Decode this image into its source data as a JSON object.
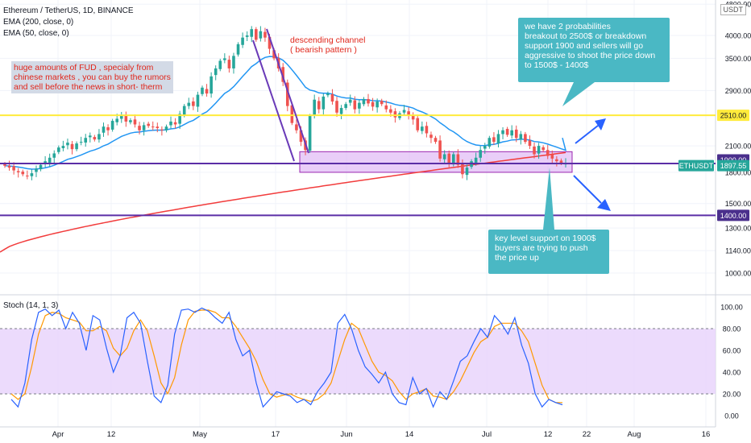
{
  "legend": {
    "symbol": "Ethereum / TetherUS, 1D, BINANCE",
    "ema200": "EMA (200, close, 0)",
    "ema50": "EMA (50, close, 0)",
    "stoch": "Stoch (14, 1, 3)"
  },
  "currency_button": "USDT",
  "annotations": {
    "fud": "huge amounts of FUD , specialy from\nchinese markets , you can buy the rumors\nand sell before the news in short- therm",
    "channel": "descending channel\n( bearish pattern )",
    "probabilities": "we have 2 probabilities\nbreakout to 2500$ or breakdown\nsupport 1900 and sellers will go\naggressive to shoot the price down\nto 1500$ - 1400$",
    "key_level": "key level support on 1900$\nbuyers are trying to push\nthe price up"
  },
  "price_labels": {
    "level_2510": "2510.00",
    "level_1900": "1900.00",
    "current_symbol": "ETHUSDT",
    "current_price": "1897.55",
    "level_1400": "1400.00"
  },
  "colors": {
    "up": "#26a69a",
    "down": "#ef5350",
    "ema50": "#2196f3",
    "ema200": "#f23c3c",
    "level_2510": "#ffeb3b",
    "level_1900": "#5b2ea6",
    "level_1400": "#5b2ea6",
    "zone": "#d7a6f2",
    "channel": "#6a3ab8",
    "arrow": "#2962ff",
    "stoch_k": "#2962ff",
    "stoch_d": "#ff9800",
    "stoch_band": "#e9d5fb"
  },
  "chart_data": {
    "type": "candlestick",
    "price_axis": {
      "ticks": [
        1000,
        1140,
        1300,
        1400,
        1500,
        1800,
        1900,
        2100,
        2510,
        2900,
        3500,
        4000,
        4800
      ],
      "tick_labels": [
        "1000.00",
        "1140.00",
        "1300.00",
        "1400.00",
        "1500.00",
        "1800.00",
        "1900.00",
        "2100.00",
        "2510.00",
        "2900.00",
        "3500.00",
        "4000.00",
        "4800.00"
      ],
      "scale": "log"
    },
    "time_axis": {
      "labels": [
        "Apr",
        "12",
        "May",
        "17",
        "Jun",
        "14",
        "Jul",
        "12",
        "22",
        "Aug",
        "16"
      ]
    },
    "closes": [
      1870,
      1850,
      1820,
      1800,
      1780,
      1760,
      1790,
      1840,
      1880,
      1920,
      1960,
      2010,
      2080,
      2100,
      2140,
      2060,
      2130,
      2150,
      2200,
      2230,
      2180,
      2250,
      2350,
      2300,
      2430,
      2460,
      2500,
      2420,
      2440,
      2380,
      2300,
      2370,
      2360,
      2340,
      2330,
      2300,
      2350,
      2420,
      2380,
      2530,
      2650,
      2700,
      2650,
      2830,
      2950,
      2850,
      3150,
      3300,
      3450,
      3500,
      3300,
      3550,
      3800,
      3950,
      4000,
      4150,
      3900,
      4100,
      3950,
      3700,
      3500,
      3300,
      3050,
      2650,
      2400,
      2300,
      2150,
      2050,
      2500,
      2750,
      2600,
      2800,
      2850,
      2720,
      2550,
      2620,
      2680,
      2750,
      2600,
      2700,
      2760,
      2690,
      2640,
      2720,
      2680,
      2600,
      2550,
      2480,
      2540,
      2590,
      2510,
      2450,
      2300,
      2350,
      2260,
      2200,
      2150,
      1950,
      2000,
      1900,
      2000,
      1880,
      1780,
      1850,
      1920,
      1960,
      2050,
      2100,
      2200,
      2150,
      2250,
      2300,
      2240,
      2300,
      2200,
      2250,
      2150,
      2100,
      2000,
      2100,
      2050,
      1980,
      1950,
      1920,
      1900,
      1897.55
    ],
    "ema50_label": "EMA (50, close, 0)",
    "ema200_label": "EMA (200, close, 0)",
    "stoch_axis": {
      "ticks": [
        0,
        20,
        40,
        60,
        80,
        100
      ],
      "tick_labels": [
        "0.00",
        "20.00",
        "40.00",
        "60.00",
        "80.00",
        "100.00"
      ],
      "band": [
        20,
        80
      ]
    },
    "stoch_k": [
      15,
      8,
      30,
      70,
      95,
      98,
      92,
      97,
      80,
      95,
      85,
      60,
      92,
      88,
      62,
      40,
      55,
      90,
      95,
      85,
      50,
      18,
      12,
      28,
      75,
      97,
      98,
      95,
      99,
      96,
      90,
      85,
      95,
      70,
      55,
      60,
      30,
      8,
      15,
      22,
      20,
      18,
      12,
      15,
      10,
      22,
      30,
      40,
      85,
      93,
      80,
      60,
      45,
      38,
      30,
      40,
      20,
      12,
      10,
      35,
      20,
      25,
      8,
      22,
      15,
      32,
      50,
      55,
      68,
      80,
      72,
      92,
      85,
      75,
      90,
      65,
      48,
      20,
      8,
      15,
      12,
      10
    ],
    "stoch_d": [
      20,
      15,
      20,
      45,
      75,
      92,
      95,
      94,
      90,
      88,
      86,
      78,
      78,
      82,
      78,
      62,
      55,
      62,
      78,
      88,
      78,
      55,
      30,
      20,
      35,
      65,
      88,
      96,
      97,
      97,
      95,
      90,
      90,
      82,
      72,
      62,
      50,
      33,
      20,
      17,
      19,
      20,
      17,
      15,
      13,
      15,
      20,
      30,
      50,
      70,
      85,
      80,
      65,
      50,
      40,
      37,
      32,
      22,
      15,
      20,
      22,
      25,
      18,
      17,
      15,
      22,
      32,
      45,
      58,
      68,
      72,
      82,
      85,
      85,
      85,
      78,
      68,
      48,
      28,
      15,
      12,
      12
    ]
  }
}
